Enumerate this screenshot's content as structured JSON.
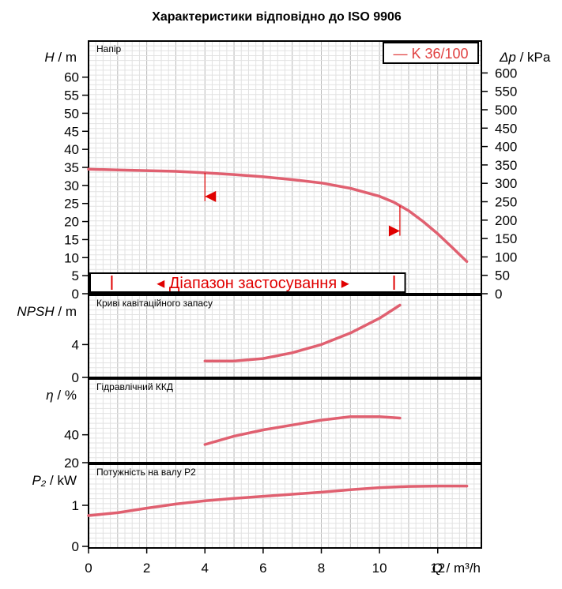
{
  "chart_data": {
    "type": "line",
    "title": "Характеристики відповідно до ISO 9906",
    "legend": "— K 36/100",
    "curve_color": "#e06070",
    "marker_color": "#e00000",
    "x": {
      "label_q": "Q",
      "label_unit": "/ m³/h",
      "range": [
        0,
        13.5
      ],
      "ticks": [
        "0",
        "2",
        "4",
        "6",
        "8",
        "10",
        "12"
      ]
    },
    "panels": [
      {
        "key": "head",
        "title": "Напір",
        "ylabel_sym": "H",
        "ylabel_unit": "/ m",
        "ylim": [
          0,
          70
        ],
        "yticks": [
          0,
          5,
          10,
          15,
          20,
          25,
          30,
          35,
          40,
          45,
          50,
          55,
          60
        ],
        "right_label_sym": "Δp",
        "right_label_unit": "/ kPa",
        "right_ticks": [
          0,
          50,
          100,
          150,
          200,
          250,
          300,
          350,
          400,
          450,
          500,
          550,
          600
        ],
        "series": {
          "name": "K 36/100",
          "x": [
            0,
            1,
            2,
            3,
            4,
            5,
            6,
            7,
            8,
            9,
            10,
            10.5,
            11,
            11.5,
            12,
            12.5,
            13
          ],
          "y": [
            34.5,
            34.3,
            34.1,
            33.9,
            33.5,
            33.0,
            32.4,
            31.6,
            30.7,
            29.2,
            27.0,
            25.3,
            23.0,
            20.0,
            16.6,
            12.8,
            8.9
          ]
        },
        "range_label": "◂ Діапазон застосування ▸",
        "operating_range": [
          0.8,
          10.5
        ],
        "range_markers": [
          4.0,
          10.7
        ]
      },
      {
        "key": "npsh",
        "title": "Криві кавітаційного запасу",
        "ylabel_sym": "NPSH",
        "ylabel_unit": "/ m",
        "ylim": [
          0,
          10
        ],
        "yticks": [
          0,
          4
        ],
        "series": {
          "x": [
            4,
            5,
            6,
            7,
            8,
            9,
            10,
            10.7
          ],
          "y": [
            2.0,
            2.0,
            2.3,
            3.0,
            4.0,
            5.4,
            7.2,
            8.8
          ]
        }
      },
      {
        "key": "eta",
        "title": "Гідравлічний ККД",
        "ylabel_sym": "η",
        "ylabel_unit": "/ %",
        "ylim": [
          20,
          80
        ],
        "yticks": [
          20,
          40
        ],
        "series": {
          "x": [
            4,
            5,
            6,
            7,
            8,
            9,
            9.5,
            10,
            10.7
          ],
          "y": [
            33,
            39,
            43.5,
            47,
            50.5,
            53,
            53,
            53,
            52
          ]
        }
      },
      {
        "key": "power",
        "title": "Потужність на валу P2",
        "ylabel_sym": "P₂",
        "ylabel_unit": "/ kW",
        "ylim": [
          0,
          2
        ],
        "yticks": [
          0,
          1
        ],
        "series": {
          "x": [
            0,
            1,
            2,
            3,
            4,
            5,
            6,
            7,
            8,
            9,
            10,
            11,
            12,
            13
          ],
          "y": [
            0.75,
            0.82,
            0.93,
            1.03,
            1.11,
            1.17,
            1.22,
            1.27,
            1.32,
            1.38,
            1.43,
            1.46,
            1.47,
            1.47
          ]
        }
      }
    ]
  }
}
